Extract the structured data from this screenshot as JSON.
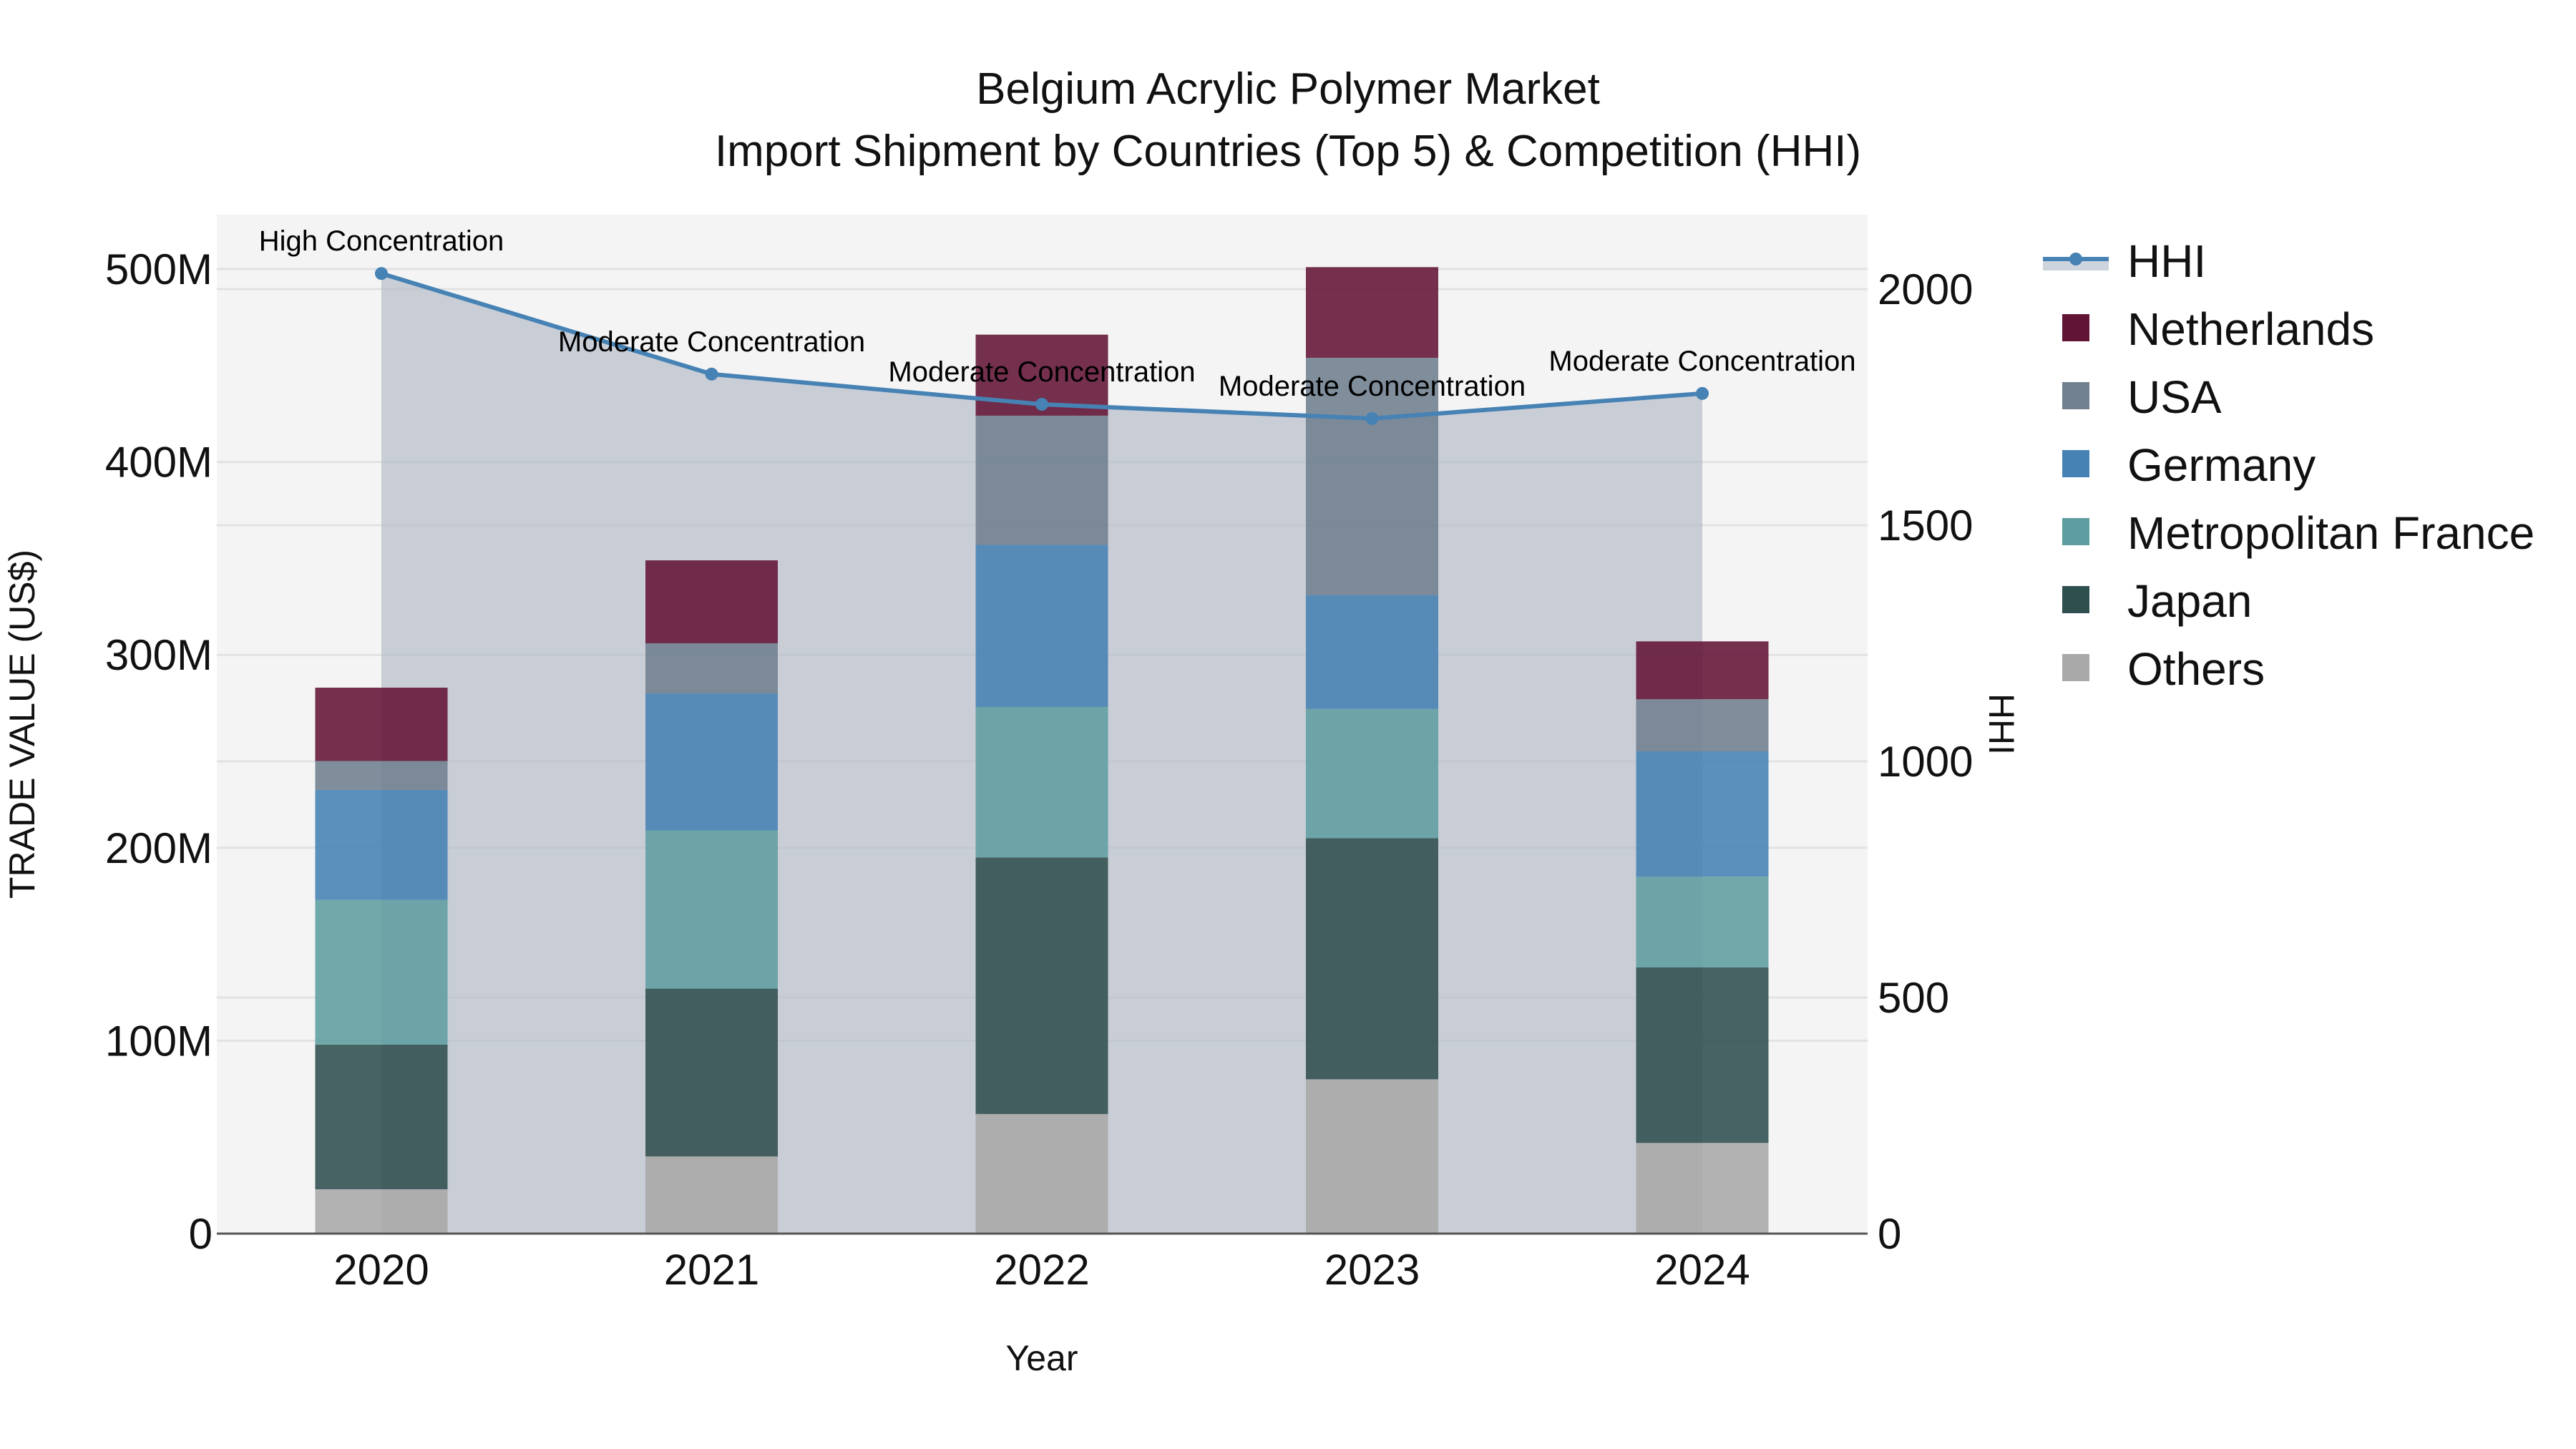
{
  "chart_data": {
    "type": "bar",
    "subtype": "stacked bar with line overlay (secondary axis)",
    "title": "Belgium Acrylic Polymer Market",
    "subtitle": "Import Shipment by Countries (Top 5) & Competition (HHI)",
    "xlabel": "Year",
    "ylabel": "TRADE VALUE (US$)",
    "y2label": "HHI",
    "categories": [
      "2020",
      "2021",
      "2022",
      "2023",
      "2024"
    ],
    "ylim": [
      0,
      530
    ],
    "y_unit": "M",
    "y_ticks": [
      0,
      100,
      200,
      300,
      400,
      500
    ],
    "y_tick_labels": [
      "0",
      "100M",
      "200M",
      "300M",
      "400M",
      "500M"
    ],
    "y2lim": [
      0,
      2165
    ],
    "y2_ticks": [
      0,
      500,
      1000,
      1500,
      2000
    ],
    "y2_tick_labels": [
      "0",
      "500",
      "1000",
      "1500",
      "2000"
    ],
    "grid": true,
    "legend_position": "right",
    "series": [
      {
        "name": "Others",
        "color": "#A9A9A9",
        "values": [
          23,
          40,
          62,
          80,
          47
        ]
      },
      {
        "name": "Japan",
        "color": "#2F4F4F",
        "values": [
          75,
          87,
          133,
          125,
          91
        ]
      },
      {
        "name": "Metropolitan France",
        "color": "#5F9EA0",
        "values": [
          75,
          82,
          78,
          67,
          47
        ]
      },
      {
        "name": "Germany",
        "color": "#4682B4",
        "values": [
          57,
          71,
          84,
          59,
          65
        ]
      },
      {
        "name": "USA",
        "color": "#708090",
        "values": [
          15,
          26,
          67,
          123,
          27
        ]
      },
      {
        "name": "Netherlands",
        "color": "#621436",
        "values": [
          38,
          43,
          42,
          47,
          30
        ]
      }
    ],
    "line_series": {
      "name": "HHI",
      "axis": "y2",
      "color": "#4682B4",
      "fill_color": "rgba(176,184,198,0.65)",
      "values": [
        2033,
        1820,
        1756,
        1726,
        1779
      ],
      "annotations": [
        "High Concentration",
        "Moderate Concentration",
        "Moderate Concentration",
        "Moderate Concentration",
        "Moderate Concentration"
      ]
    },
    "legend": [
      "HHI",
      "Netherlands",
      "USA",
      "Germany",
      "Metropolitan France",
      "Japan",
      "Others"
    ]
  },
  "colors": {
    "plot_bg": "#F4F4F4",
    "grid": "#E2E2E2",
    "axis_line": "#555555",
    "text": "#111111"
  }
}
